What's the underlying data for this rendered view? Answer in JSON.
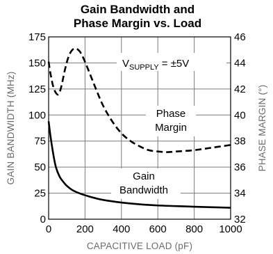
{
  "chart_data": {
    "type": "line",
    "title_lines": [
      "Gain Bandwidth and",
      "Phase Margin vs. Load"
    ],
    "xlabel": "CAPACITIVE LOAD (pF)",
    "ylabel_left": "GAIN BANDWIDTH (MHz)",
    "ylabel_right": "PHASE MARGIN (°)",
    "xlim": [
      0,
      1000
    ],
    "ylim_left": [
      0,
      175
    ],
    "ylim_right": [
      32,
      46
    ],
    "x_ticks": [
      "0",
      "200",
      "400",
      "600",
      "800",
      "1000"
    ],
    "y_ticks_left": [
      "0",
      "25",
      "50",
      "75",
      "100",
      "125",
      "150",
      "175"
    ],
    "y_ticks_right": [
      "32",
      "34",
      "36",
      "38",
      "40",
      "42",
      "44",
      "46"
    ],
    "grid": true,
    "annotations": {
      "supply": {
        "base": "V",
        "sub": "SUPPLY",
        "rest": " = ±5V"
      },
      "phase_margin": [
        "Phase",
        "Margin"
      ],
      "gain_bandwidth": [
        "Gain",
        "Bandwidth"
      ]
    },
    "series": [
      {
        "name": "Gain Bandwidth",
        "axis": "left",
        "style": "solid",
        "x": [
          0,
          10,
          25,
          40,
          60,
          80,
          100,
          130,
          160,
          200,
          250,
          300,
          400,
          500,
          600,
          700,
          800,
          900,
          1000
        ],
        "y": [
          94,
          80,
          63,
          50,
          41,
          36,
          32,
          28,
          25.5,
          23,
          20.5,
          18.5,
          16,
          14.3,
          13.2,
          12.6,
          12,
          11.5,
          11
        ]
      },
      {
        "name": "Phase Margin",
        "axis": "right",
        "style": "dashed",
        "x": [
          0,
          10,
          25,
          40,
          55,
          70,
          90,
          110,
          130,
          150,
          170,
          190,
          220,
          260,
          300,
          350,
          400,
          450,
          500,
          550,
          600,
          650,
          700,
          800,
          900,
          1000
        ],
        "y": [
          44.1,
          43.2,
          42.2,
          41.7,
          41.6,
          42.2,
          43.5,
          44.5,
          45.0,
          45.1,
          44.9,
          44.4,
          43.4,
          42.0,
          40.7,
          39.5,
          38.6,
          38.0,
          37.6,
          37.3,
          37.2,
          37.15,
          37.2,
          37.3,
          37.5,
          37.7
        ]
      }
    ]
  }
}
